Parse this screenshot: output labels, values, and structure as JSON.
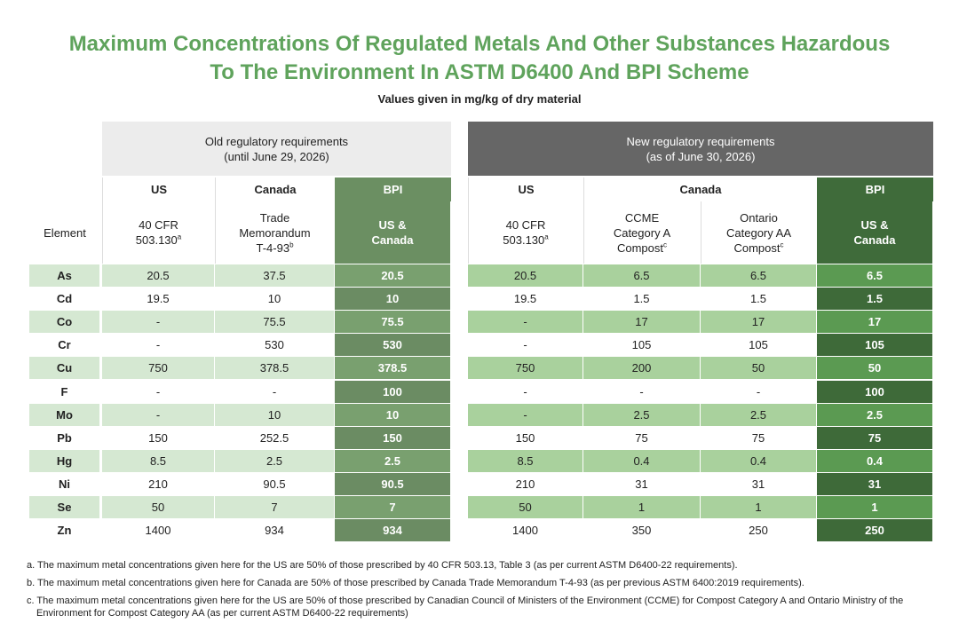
{
  "title": [
    "Maximum Concentrations Of Regulated Metals And Other Substances Hazardous",
    "To The Environment In ASTM D6400 And BPI Scheme"
  ],
  "subtitle": "Values given in mg/kg of dry material",
  "table": {
    "groups": [
      {
        "lines": [
          "Old regulatory requirements",
          "(until June 29, 2026)"
        ]
      },
      {
        "lines": [
          "New regulatory requirements",
          "(as of June 30, 2026)"
        ]
      }
    ],
    "subheaders": [
      "US",
      "Canada",
      "BPI",
      "US",
      "Canada",
      "BPI"
    ],
    "element_header": "Element",
    "column_labels": [
      {
        "lines": [
          "40 CFR",
          "503.130"
        ],
        "sup": "a"
      },
      {
        "lines": [
          "Trade",
          "Memorandum",
          "T-4-93"
        ],
        "sup": "b"
      },
      {
        "lines": [
          "US &",
          "Canada"
        ]
      },
      {
        "lines": [
          "40 CFR",
          "503.130"
        ],
        "sup": "a"
      },
      {
        "lines": [
          "CCME",
          "Category A",
          "Compost"
        ],
        "sup": "c"
      },
      {
        "lines": [
          "Ontario",
          "Category AA",
          "Compost"
        ],
        "sup": "c"
      },
      {
        "lines": [
          "US &",
          "Canada"
        ]
      }
    ],
    "rows": [
      [
        "As",
        20.5,
        37.5,
        20.5,
        20.5,
        6.5,
        6.5,
        6.5
      ],
      [
        "Cd",
        19.5,
        10,
        10,
        19.5,
        1.5,
        1.5,
        1.5
      ],
      [
        "Co",
        "-",
        75.5,
        75.5,
        "-",
        17,
        17,
        17
      ],
      [
        "Cr",
        "-",
        530,
        530,
        "-",
        105,
        105,
        105
      ],
      [
        "Cu",
        750,
        378.5,
        378.5,
        750,
        200,
        50,
        50
      ],
      [
        "F",
        "-",
        "-",
        100,
        "-",
        "-",
        "-",
        100
      ],
      [
        "Mo",
        "-",
        10,
        10,
        "-",
        2.5,
        2.5,
        2.5
      ],
      [
        "Pb",
        150,
        252.5,
        150,
        150,
        75,
        75,
        75
      ],
      [
        "Hg",
        8.5,
        2.5,
        2.5,
        8.5,
        0.4,
        0.4,
        0.4
      ],
      [
        "Ni",
        210,
        90.5,
        90.5,
        210,
        31,
        31,
        31
      ],
      [
        "Se",
        50,
        7,
        7,
        50,
        1,
        1,
        1
      ],
      [
        "Zn",
        1400,
        934,
        934,
        1400,
        350,
        250,
        250
      ]
    ]
  },
  "footnotes": [
    {
      "marker": "a.",
      "text": "The maximum metal concentrations given here for the US are 50% of those prescribed by 40 CFR 503.13, Table 3 (as per current ASTM D6400-22 requirements)."
    },
    {
      "marker": "b.",
      "text": "The maximum metal concentrations given here for Canada are 50% of those prescribed by Canada Trade Memorandum T-4-93 (as per previous ASTM 6400:2019 requirements)."
    },
    {
      "marker": "c.",
      "text": "The maximum metal concentrations given here for the US are 50% of those prescribed by Canadian Council of Ministers of the Environment (CCME) for Compost Category A and Ontario Ministry of the Environment for Compost Category AA (as per current ASTM D6400-22 requirements)"
    }
  ]
}
